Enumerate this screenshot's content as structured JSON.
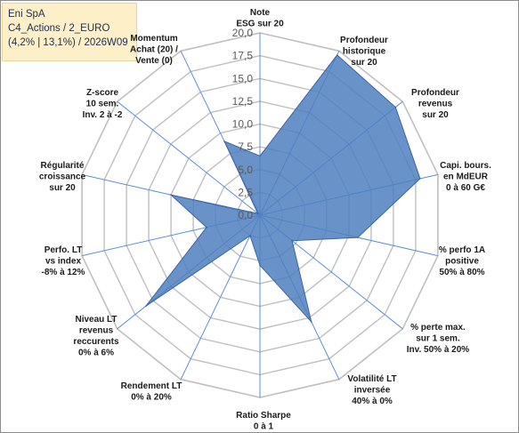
{
  "info": {
    "line1": "Eni SpA",
    "line2": "C4_Actions / 2_EURO",
    "line3": "(4,2% | 13,1%) / 2026W09"
  },
  "colors": {
    "fill": "#4f7fc0",
    "stroke": "#3a64a6",
    "grid": "#bfbfbf",
    "spoke": "#5b8fd6"
  },
  "chart_data": {
    "type": "radar",
    "rmax": 20,
    "ticks": [
      "0,0",
      "2,5",
      "5,0",
      "7,5",
      "10,0",
      "12,5",
      "15,0",
      "17,5",
      "20,0"
    ],
    "axes": [
      {
        "lines": [
          "Note",
          "ESG sur 20"
        ],
        "value": 6.5
      },
      {
        "lines": [
          "Profondeur",
          "historique",
          "sur 20"
        ],
        "value": 19.5
      },
      {
        "lines": [
          "Profondeur",
          "revenus",
          "sur 20"
        ],
        "value": 19.0
      },
      {
        "lines": [
          "Capi. bours.",
          "en MdEUR",
          "0 à 60 G€"
        ],
        "value": 18.0
      },
      {
        "lines": [
          "% perfo 1A",
          "positive",
          "50% à 80%"
        ],
        "value": 11.0
      },
      {
        "lines": [
          "% perte max.",
          "sur 1 sem.",
          "Inv. 50% à 20%"
        ],
        "value": 4.5
      },
      {
        "lines": [
          "Volatilité LT",
          "inversée",
          "40% à 0%"
        ],
        "value": 13.0
      },
      {
        "lines": [
          "Ratio Sharpe",
          "0 à 1"
        ],
        "value": 5.5
      },
      {
        "lines": [
          "Rendement LT",
          "0% à 20%"
        ],
        "value": 2.5
      },
      {
        "lines": [
          "Niveau LT",
          "revenus",
          "reccurents",
          "0% à 6%"
        ],
        "value": 16.0
      },
      {
        "lines": [
          "Perfo. LT",
          "vs index",
          "-8% à 12%"
        ],
        "value": 6.0
      },
      {
        "lines": [
          "Régularité",
          "croissance",
          "sur 20"
        ],
        "value": 10.0
      },
      {
        "lines": [
          "Z-score",
          "10 sem.",
          "Inv. 2 à -2"
        ],
        "value": 0.3
      },
      {
        "lines": [
          "Momentum",
          "Achat (20) /",
          "Vente (0)"
        ],
        "value": 9.0
      }
    ]
  }
}
